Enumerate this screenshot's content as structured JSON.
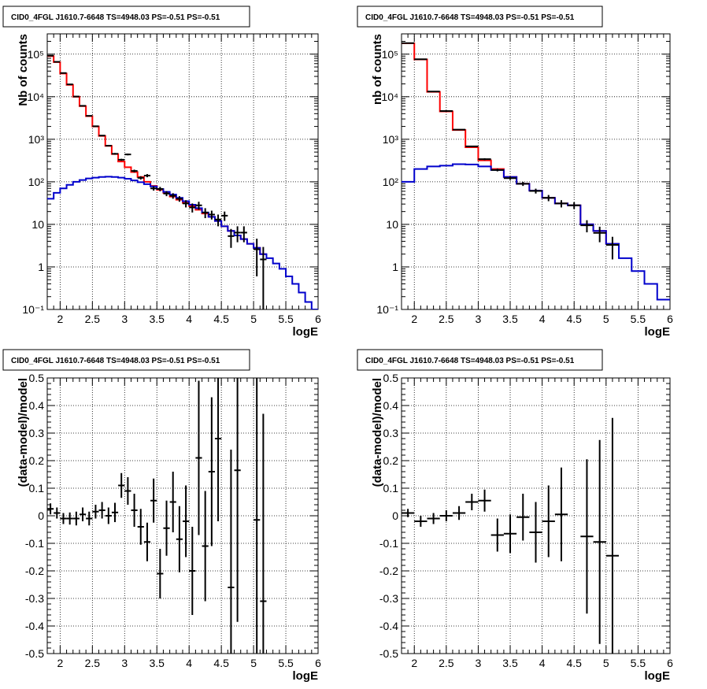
{
  "colors": {
    "data": "#000000",
    "model_total": "#ff0000",
    "model_source": "#0000cc",
    "grid": "#000000",
    "frame": "#000000",
    "background": "#ffffff"
  },
  "chart_data": [
    {
      "type": "step-histogram",
      "title": "CID0_4FGL J1610.7-6648 TS=4948.03 PS=-0.51 PS=-0.51",
      "xlabel": "logE",
      "ylabel": "Nb of counts",
      "xlim": [
        1.8,
        6.0
      ],
      "ylim": [
        0.1,
        300000
      ],
      "yscale": "log",
      "grid": true,
      "xticks": [
        "2",
        "2.5",
        "3",
        "3.5",
        "4",
        "4.5",
        "5",
        "5.5",
        "6"
      ],
      "yticks": [
        "10⁻¹",
        "1",
        "10",
        "10²",
        "10³",
        "10⁴",
        "10⁵"
      ],
      "bin_edges": [
        1.8,
        1.9,
        2.0,
        2.1,
        2.2,
        2.3,
        2.4,
        2.5,
        2.6,
        2.7,
        2.8,
        2.9,
        3.0,
        3.1,
        3.2,
        3.3,
        3.4,
        3.5,
        3.6,
        3.7,
        3.8,
        3.9,
        4.0,
        4.1,
        4.2,
        4.3,
        4.4,
        4.5,
        4.6,
        4.7,
        4.8,
        4.9,
        5.0,
        5.1,
        5.2,
        5.3,
        5.4,
        5.5,
        5.6,
        5.7,
        5.8,
        5.9,
        6.0
      ],
      "series": [
        {
          "role": "model_total",
          "values": [
            90000,
            65000,
            35000,
            19000,
            10000,
            6000,
            3500,
            2000,
            1200,
            700,
            450,
            300,
            220,
            170,
            130,
            100,
            80,
            65,
            55,
            45,
            38,
            32,
            27,
            22,
            18,
            15,
            12,
            9,
            7,
            5.5,
            4.5,
            3.5,
            2.8,
            2.0
          ]
        },
        {
          "role": "model_source",
          "values": [
            40,
            55,
            70,
            85,
            100,
            110,
            120,
            125,
            130,
            132,
            130,
            125,
            118,
            108,
            98,
            88,
            78,
            68,
            58,
            50,
            42,
            35,
            29,
            24,
            19,
            15,
            12,
            9,
            7,
            5.5,
            4.5,
            3.5,
            2.8,
            2.0,
            1.6,
            1.2,
            0.9,
            0.6,
            0.4,
            0.25,
            0.15,
            0.1
          ]
        }
      ],
      "points": [
        {
          "x": 1.85,
          "y": 92000,
          "yerr": 300
        },
        {
          "x": 1.95,
          "y": 66000,
          "yerr": 250
        },
        {
          "x": 2.05,
          "y": 36000,
          "yerr": 190
        },
        {
          "x": 2.15,
          "y": 19500,
          "yerr": 140
        },
        {
          "x": 2.25,
          "y": 10100,
          "yerr": 100
        },
        {
          "x": 2.35,
          "y": 6100,
          "yerr": 78
        },
        {
          "x": 2.45,
          "y": 3550,
          "yerr": 60
        },
        {
          "x": 2.55,
          "y": 2020,
          "yerr": 45
        },
        {
          "x": 2.65,
          "y": 1220,
          "yerr": 35
        },
        {
          "x": 2.75,
          "y": 705,
          "yerr": 27
        },
        {
          "x": 2.85,
          "y": 455,
          "yerr": 21
        },
        {
          "x": 2.95,
          "y": 330,
          "yerr": 18
        },
        {
          "x": 3.05,
          "y": 440,
          "yerr": 21
        },
        {
          "x": 3.15,
          "y": 180,
          "yerr": 13
        },
        {
          "x": 3.25,
          "y": 124,
          "yerr": 11
        },
        {
          "x": 3.35,
          "y": 140,
          "yerr": 12
        },
        {
          "x": 3.45,
          "y": 70,
          "yerr": 8
        },
        {
          "x": 3.55,
          "y": 68,
          "yerr": 8
        },
        {
          "x": 3.65,
          "y": 53,
          "yerr": 7
        },
        {
          "x": 3.75,
          "y": 47,
          "yerr": 7
        },
        {
          "x": 3.85,
          "y": 40,
          "yerr": 6
        },
        {
          "x": 3.95,
          "y": 31,
          "yerr": 6
        },
        {
          "x": 4.05,
          "y": 25,
          "yerr": 6
        },
        {
          "x": 4.15,
          "y": 28,
          "yerr": 6
        },
        {
          "x": 4.25,
          "y": 19,
          "yerr": 5
        },
        {
          "x": 4.35,
          "y": 17,
          "yerr": 4
        },
        {
          "x": 4.45,
          "y": 13,
          "yerr": 4
        },
        {
          "x": 4.55,
          "y": 16,
          "yerr": 4
        },
        {
          "x": 4.65,
          "y": 5.3,
          "yerr": 2.5
        },
        {
          "x": 4.75,
          "y": 6.4,
          "yerr": 2.6
        },
        {
          "x": 4.85,
          "y": 6.4,
          "yerr": 2.6
        },
        {
          "x": 5.05,
          "y": 2.6,
          "yerr": 2.0
        },
        {
          "x": 5.15,
          "y": 1.5,
          "yerr": 1.45
        }
      ]
    },
    {
      "type": "step-histogram",
      "title": "CID0_4FGL J1610.7-6648 TS=4948.03 PS=-0.51 PS=-0.51",
      "xlabel": "logE",
      "ylabel": "nb of counts",
      "xlim": [
        1.8,
        6.0
      ],
      "ylim": [
        0.1,
        300000
      ],
      "yscale": "log",
      "grid": true,
      "xticks": [
        "2",
        "2.5",
        "3",
        "3.5",
        "4",
        "4.5",
        "5",
        "5.5",
        "6"
      ],
      "yticks": [
        "10⁻¹",
        "1",
        "10",
        "10²",
        "10³",
        "10⁴",
        "10⁵"
      ],
      "bin_edges": [
        1.8,
        2.0,
        2.2,
        2.4,
        2.6,
        2.8,
        3.0,
        3.2,
        3.4,
        3.6,
        3.8,
        4.0,
        4.2,
        4.4,
        4.6,
        4.8,
        5.0,
        5.2,
        5.4,
        5.6,
        5.8,
        6.0
      ],
      "series": [
        {
          "role": "model_total",
          "values": [
            180000,
            75000,
            13000,
            4500,
            1650,
            650,
            320,
            200,
            130,
            90,
            62,
            42,
            31,
            28,
            10,
            7,
            3.5
          ]
        },
        {
          "role": "model_source",
          "values": [
            100,
            200,
            230,
            240,
            260,
            255,
            230,
            190,
            130,
            90,
            62,
            42,
            31,
            28,
            10,
            7,
            3.5,
            1.6,
            0.8,
            0.4,
            0.17
          ]
        }
      ],
      "points": [
        {
          "x": 1.9,
          "y": 182000,
          "yerr": 430
        },
        {
          "x": 2.1,
          "y": 76000,
          "yerr": 280
        },
        {
          "x": 2.3,
          "y": 13200,
          "yerr": 115
        },
        {
          "x": 2.5,
          "y": 4600,
          "yerr": 68
        },
        {
          "x": 2.7,
          "y": 1680,
          "yerr": 41
        },
        {
          "x": 2.9,
          "y": 680,
          "yerr": 26
        },
        {
          "x": 3.1,
          "y": 340,
          "yerr": 18
        },
        {
          "x": 3.3,
          "y": 190,
          "yerr": 14
        },
        {
          "x": 3.5,
          "y": 122,
          "yerr": 11
        },
        {
          "x": 3.7,
          "y": 90,
          "yerr": 10
        },
        {
          "x": 3.9,
          "y": 61,
          "yerr": 8
        },
        {
          "x": 4.1,
          "y": 42,
          "yerr": 7
        },
        {
          "x": 4.3,
          "y": 31,
          "yerr": 6
        },
        {
          "x": 4.5,
          "y": 28,
          "yerr": 5
        },
        {
          "x": 4.7,
          "y": 9.5,
          "yerr": 3
        },
        {
          "x": 4.9,
          "y": 6.3,
          "yerr": 2.5
        },
        {
          "x": 5.1,
          "y": 3.3,
          "yerr": 1.8
        }
      ]
    },
    {
      "type": "scatter-errorbars",
      "title": "CID0_4FGL J1610.7-6648 TS=4948.03 PS=-0.51 PS=-0.51",
      "xlabel": "logE",
      "ylabel": "(data-model)/model",
      "xlim": [
        1.8,
        6.0
      ],
      "ylim": [
        -0.5,
        0.5
      ],
      "grid": true,
      "xticks": [
        "2",
        "2.5",
        "3",
        "3.5",
        "4",
        "4.5",
        "5",
        "5.5",
        "6"
      ],
      "yticks": [
        "-0.5",
        "-0.4",
        "-0.3",
        "-0.2",
        "-0.1",
        "0",
        "0.1",
        "0.2",
        "0.3",
        "0.4",
        "0.5"
      ],
      "xerr": 0.05,
      "points": [
        {
          "x": 1.85,
          "y": 0.025,
          "yerr": 0.02
        },
        {
          "x": 1.95,
          "y": 0.01,
          "yerr": 0.02
        },
        {
          "x": 2.05,
          "y": -0.01,
          "yerr": 0.02
        },
        {
          "x": 2.15,
          "y": -0.01,
          "yerr": 0.022
        },
        {
          "x": 2.25,
          "y": -0.01,
          "yerr": 0.025
        },
        {
          "x": 2.35,
          "y": 0.005,
          "yerr": 0.025
        },
        {
          "x": 2.45,
          "y": -0.01,
          "yerr": 0.025
        },
        {
          "x": 2.55,
          "y": 0.015,
          "yerr": 0.025
        },
        {
          "x": 2.65,
          "y": 0.02,
          "yerr": 0.03
        },
        {
          "x": 2.75,
          "y": 0.0,
          "yerr": 0.03
        },
        {
          "x": 2.85,
          "y": 0.012,
          "yerr": 0.035
        },
        {
          "x": 2.95,
          "y": 0.11,
          "yerr": 0.045
        },
        {
          "x": 3.05,
          "y": 0.09,
          "yerr": 0.05
        },
        {
          "x": 3.15,
          "y": 0.02,
          "yerr": 0.06
        },
        {
          "x": 3.25,
          "y": -0.04,
          "yerr": 0.065
        },
        {
          "x": 3.35,
          "y": -0.095,
          "yerr": 0.07
        },
        {
          "x": 3.45,
          "y": 0.055,
          "yerr": 0.08
        },
        {
          "x": 3.55,
          "y": -0.21,
          "yerr": 0.09
        },
        {
          "x": 3.65,
          "y": -0.045,
          "yerr": 0.1
        },
        {
          "x": 3.75,
          "y": 0.05,
          "yerr": 0.11
        },
        {
          "x": 3.85,
          "y": -0.085,
          "yerr": 0.12
        },
        {
          "x": 3.95,
          "y": -0.02,
          "yerr": 0.13
        },
        {
          "x": 4.05,
          "y": -0.2,
          "yerr": 0.16
        },
        {
          "x": 4.15,
          "y": 0.21,
          "yerr": 0.28
        },
        {
          "x": 4.25,
          "y": -0.11,
          "yerr": 0.2
        },
        {
          "x": 4.35,
          "y": 0.16,
          "yerr": 0.27
        },
        {
          "x": 4.45,
          "y": 0.28,
          "yerr": 0.3
        },
        {
          "x": 4.65,
          "y": -0.26,
          "yerr": 0.5
        },
        {
          "x": 4.75,
          "y": 0.165,
          "yerr": 0.55
        },
        {
          "x": 5.05,
          "y": -0.015,
          "yerr": 0.7
        },
        {
          "x": 5.15,
          "y": -0.31,
          "yerr": 0.68
        }
      ]
    },
    {
      "type": "scatter-errorbars",
      "title": "CID0_4FGL J1610.7-6648 TS=4948.03 PS=-0.51 PS=-0.51",
      "xlabel": "logE",
      "ylabel": "(data-model)/model",
      "xlim": [
        1.8,
        6.0
      ],
      "ylim": [
        -0.5,
        0.5
      ],
      "grid": true,
      "xticks": [
        "2",
        "2.5",
        "3",
        "3.5",
        "4",
        "4.5",
        "5",
        "5.5",
        "6"
      ],
      "yticks": [
        "-0.5",
        "-0.4",
        "-0.3",
        "-0.2",
        "-0.1",
        "0",
        "0.1",
        "0.2",
        "0.3",
        "0.4",
        "0.5"
      ],
      "xerr": 0.1,
      "points": [
        {
          "x": 1.9,
          "y": 0.01,
          "yerr": 0.015
        },
        {
          "x": 2.1,
          "y": -0.02,
          "yerr": 0.02
        },
        {
          "x": 2.3,
          "y": -0.01,
          "yerr": 0.02
        },
        {
          "x": 2.5,
          "y": 0.0,
          "yerr": 0.02
        },
        {
          "x": 2.7,
          "y": 0.01,
          "yerr": 0.025
        },
        {
          "x": 2.9,
          "y": 0.05,
          "yerr": 0.03
        },
        {
          "x": 3.1,
          "y": 0.055,
          "yerr": 0.04
        },
        {
          "x": 3.3,
          "y": -0.07,
          "yerr": 0.06
        },
        {
          "x": 3.5,
          "y": -0.065,
          "yerr": 0.07
        },
        {
          "x": 3.7,
          "y": -0.005,
          "yerr": 0.085
        },
        {
          "x": 3.9,
          "y": -0.06,
          "yerr": 0.11
        },
        {
          "x": 4.1,
          "y": -0.02,
          "yerr": 0.13
        },
        {
          "x": 4.3,
          "y": 0.005,
          "yerr": 0.17
        },
        {
          "x": 4.7,
          "y": -0.075,
          "yerr": 0.28
        },
        {
          "x": 4.9,
          "y": -0.095,
          "yerr": 0.37
        },
        {
          "x": 5.1,
          "y": -0.145,
          "yerr": 0.5
        }
      ]
    }
  ]
}
